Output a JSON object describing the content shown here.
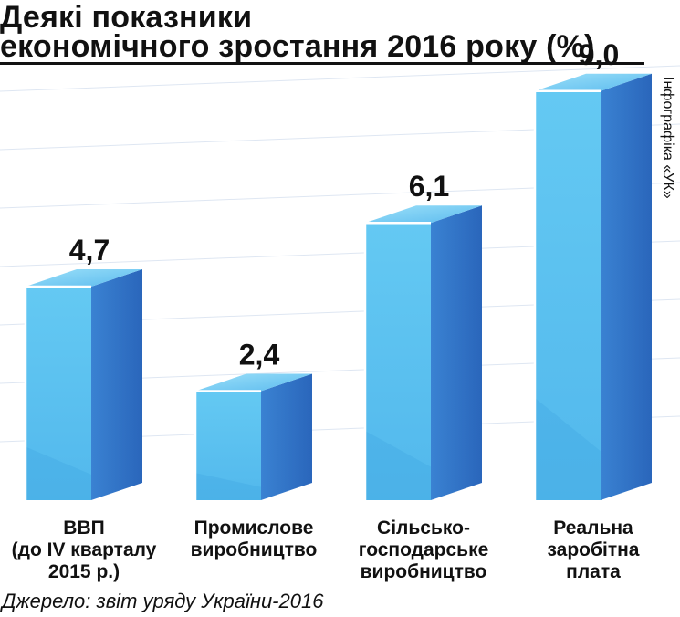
{
  "chart_data": {
    "type": "bar",
    "title_lines": [
      "Деякі показники",
      "економічного зростання 2016 року (%)"
    ],
    "categories": [
      [
        "ВВП",
        "(до IV кварталу",
        "2015 р.)"
      ],
      [
        "Промислове",
        "виробництво"
      ],
      [
        "Сільсько-",
        "господарське",
        "виробництво"
      ],
      [
        "Реальна",
        "заробітна",
        "плата"
      ]
    ],
    "values": [
      4.7,
      2.4,
      6.1,
      9.0
    ],
    "value_labels": [
      "4,7",
      "2,4",
      "6,1",
      "9,0"
    ],
    "ylim": [
      0,
      9.0
    ],
    "xlabel": "",
    "ylabel": "",
    "unit": "%"
  },
  "credit": "Інфографіка «УК»",
  "source": "Джерело: звіт уряду України-2016",
  "colors": {
    "front_face": "#5ec5f2",
    "side_face": "#2f73c8",
    "top_face": "#8edaf7",
    "edge_highlight": "#ffffff",
    "gridline": "#c9d7ea",
    "text": "#111111"
  }
}
